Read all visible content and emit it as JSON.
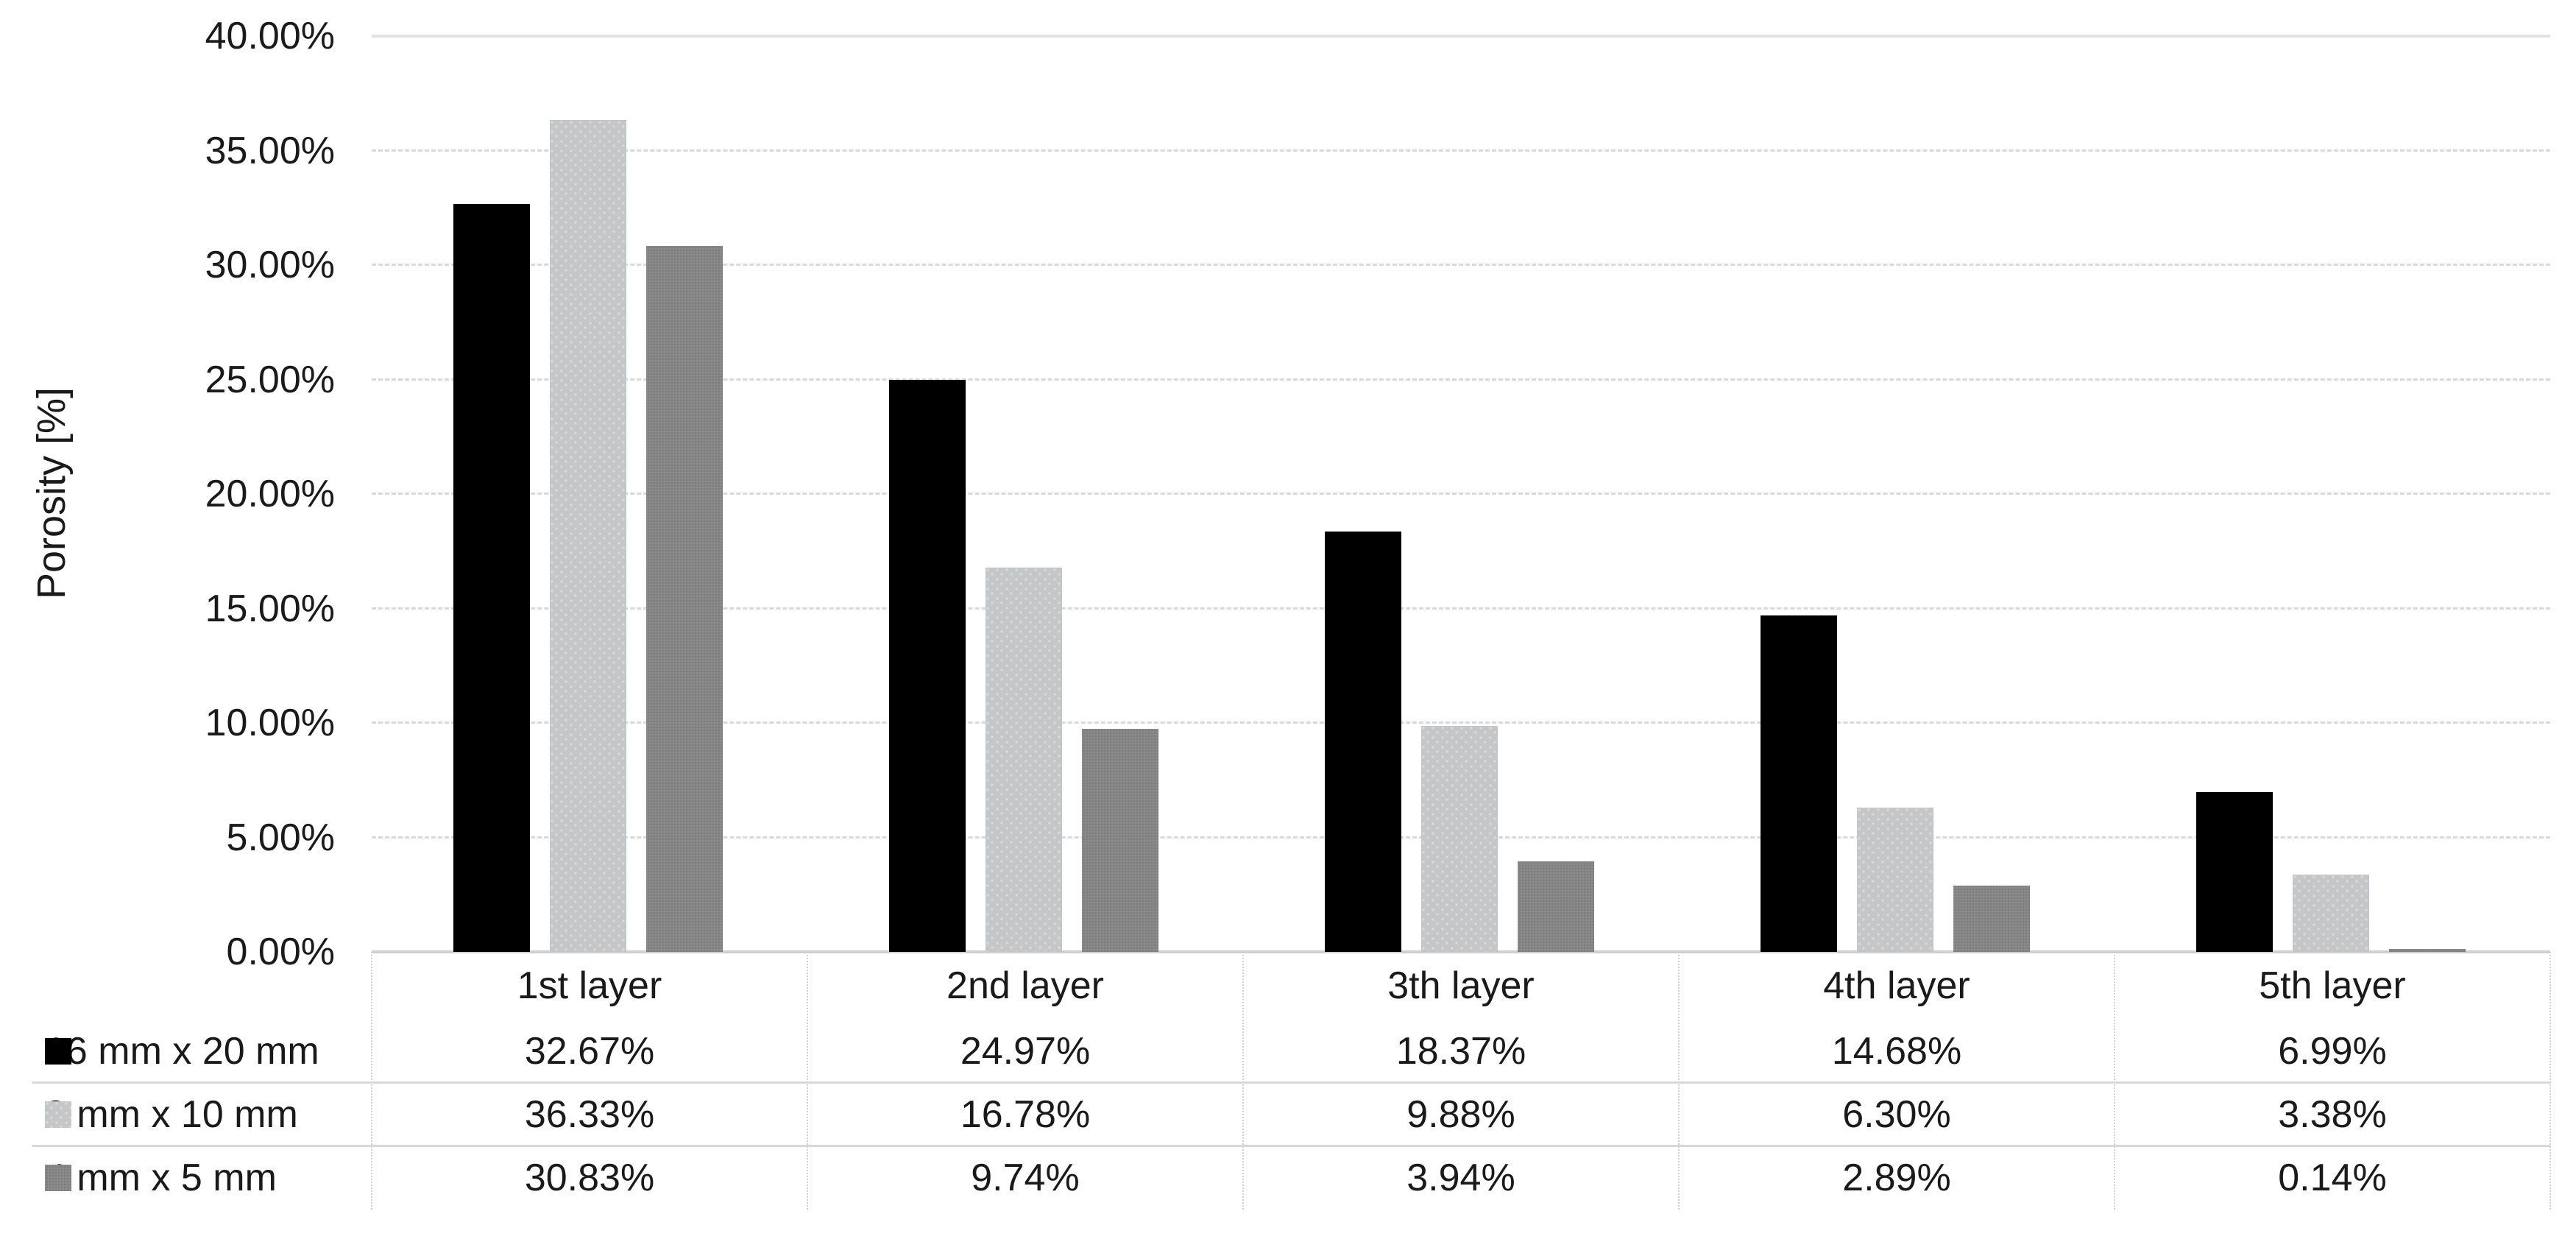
{
  "chart_data": {
    "type": "bar",
    "title": "",
    "xlabel": "",
    "ylabel": "Porosity [%]",
    "categories": [
      "1st layer",
      "2nd layer",
      "3th layer",
      "4th layer",
      "5th layer"
    ],
    "series": [
      {
        "name": "16 mm x 20 mm",
        "color": "#000000",
        "values": [
          32.67,
          24.97,
          18.37,
          14.68,
          6.99
        ],
        "display_values": [
          "32.67%",
          "24.97%",
          "18.37%",
          "14.68%",
          "6.99%"
        ]
      },
      {
        "name": "8 mm x 10 mm",
        "color": "#c5c6c7",
        "values": [
          36.33,
          16.78,
          9.88,
          6.3,
          3.38
        ],
        "display_values": [
          "36.33%",
          "16.78%",
          "9.88%",
          "6.30%",
          "3.38%"
        ]
      },
      {
        "name": "4 mm x 5 mm",
        "color": "#868686",
        "values": [
          30.83,
          9.74,
          3.94,
          2.89,
          0.14
        ],
        "display_values": [
          "30.83%",
          "9.74%",
          "3.94%",
          "2.89%",
          "0.14%"
        ]
      }
    ],
    "y_axis": {
      "min": 0,
      "max": 40,
      "step": 5,
      "tick_labels_top_down": [
        "40.00%",
        "35.00%",
        "30.00%",
        "25.00%",
        "20.00%",
        "15.00%",
        "10.00%",
        "5.00%",
        "0.00%"
      ]
    },
    "grid": true,
    "legend_position": "data-table-left-column",
    "data_table_shown": true
  }
}
